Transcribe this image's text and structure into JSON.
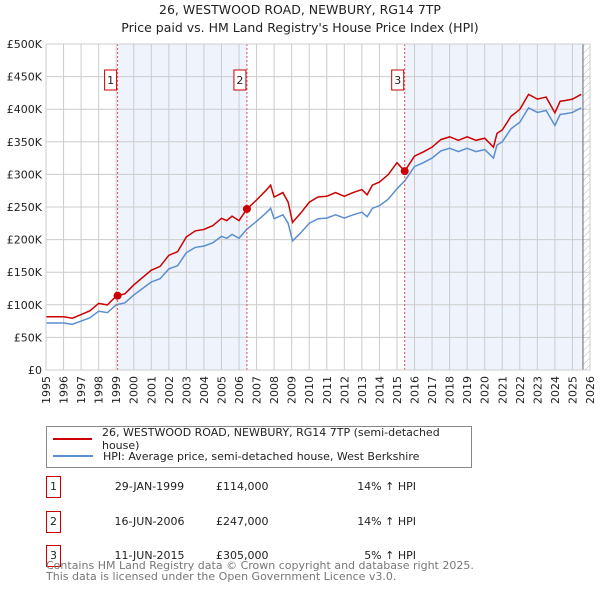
{
  "chart_data": {
    "type": "line",
    "title": "26, WESTWOOD ROAD, NEWBURY, RG14 7TP",
    "subtitle": "Price paid vs. HM Land Registry's House Price Index (HPI)",
    "xlim": [
      1995,
      2026
    ],
    "ylim": [
      0,
      500000
    ],
    "y_ticks": [
      "£0",
      "£50K",
      "£100K",
      "£150K",
      "£200K",
      "£250K",
      "£300K",
      "£350K",
      "£400K",
      "£450K",
      "£500K"
    ],
    "x_ticks": [
      "1995",
      "1996",
      "1997",
      "1998",
      "1999",
      "2000",
      "2001",
      "2002",
      "2003",
      "2004",
      "2005",
      "2006",
      "2007",
      "2008",
      "2009",
      "2010",
      "2011",
      "2012",
      "2013",
      "2014",
      "2015",
      "2016",
      "2017",
      "2018",
      "2019",
      "2020",
      "2021",
      "2022",
      "2023",
      "2024",
      "2025",
      "2026"
    ],
    "grid": true,
    "data_end": 2025.6,
    "colors": {
      "property": "#cc0000",
      "hpi": "#5b8fd0",
      "shade": "#eef3fc"
    },
    "hpi_series": {
      "name": "HPI: Average price, semi-detached house, West Berkshire",
      "x": [
        1995,
        1995.5,
        1996,
        1996.5,
        1997,
        1997.5,
        1998,
        1998.5,
        1999,
        1999.5,
        2000,
        2000.5,
        2001,
        2001.5,
        2002,
        2002.5,
        2003,
        2003.5,
        2004,
        2004.5,
        2005,
        2005.3,
        2005.6,
        2006,
        2006.45,
        2007,
        2007.5,
        2007.8,
        2008,
        2008.5,
        2008.8,
        2009.05,
        2009.5,
        2010,
        2010.5,
        2011,
        2011.5,
        2012,
        2012.5,
        2013,
        2013.3,
        2013.6,
        2014,
        2014.5,
        2015,
        2015.44,
        2016,
        2016.5,
        2017,
        2017.5,
        2018,
        2018.5,
        2019,
        2019.5,
        2020,
        2020.5,
        2020.7,
        2021,
        2021.5,
        2022,
        2022.5,
        2023,
        2023.5,
        2024,
        2024.3,
        2024.6,
        2025,
        2025.5
      ],
      "y": [
        72,
        72,
        72,
        70,
        75,
        80,
        90,
        88,
        100,
        103,
        115,
        125,
        135,
        140,
        155,
        160,
        180,
        188,
        190,
        195,
        205,
        202,
        208,
        202,
        216,
        228,
        240,
        248,
        232,
        238,
        225,
        198,
        210,
        225,
        232,
        233,
        238,
        233,
        238,
        242,
        235,
        248,
        252,
        262,
        278,
        290,
        312,
        318,
        325,
        336,
        340,
        335,
        340,
        335,
        338,
        325,
        345,
        350,
        370,
        380,
        402,
        395,
        398,
        375,
        392,
        393,
        395,
        402
      ]
    },
    "property_series": {
      "name": "26, WESTWOOD ROAD, NEWBURY, RG14 7TP (semi-detached house)"
    },
    "sales": [
      {
        "label": "1",
        "x": 1999.08,
        "date": "29-JAN-1999",
        "price": "£114,000",
        "price_k": 114,
        "delta": "14% ↑ HPI"
      },
      {
        "label": "2",
        "x": 2006.45,
        "date": "16-JUN-2006",
        "price": "£247,000",
        "price_k": 247,
        "delta": "14% ↑ HPI"
      },
      {
        "label": "3",
        "x": 2015.44,
        "date": "11-JUN-2015",
        "price": "£305,000",
        "price_k": 305,
        "delta": "5% ↑ HPI"
      }
    ]
  },
  "footer": [
    "Contains HM Land Registry data © Crown copyright and database right 2025.",
    "This data is licensed under the Open Government Licence v3.0."
  ]
}
